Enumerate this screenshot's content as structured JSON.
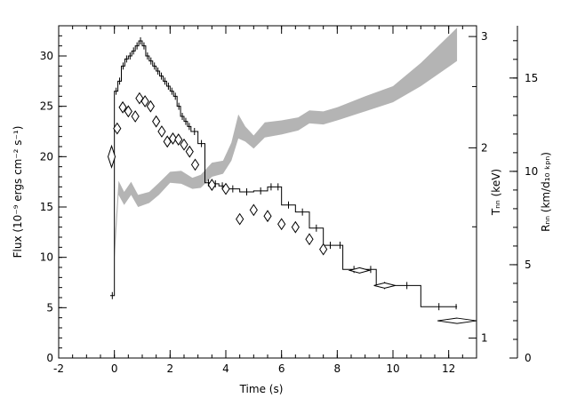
{
  "chart_data": {
    "type": "line",
    "xlabel": "Time (s)",
    "ylabel_left": "Flux (10⁻⁹ ergs cm⁻² s⁻¹)",
    "ylabel_mid": "Tₙₙ (keV)",
    "ylabel_right": "Rₙₙ (km/d₁₀ ₖₚₙ)",
    "xlim": [
      -2,
      13
    ],
    "ylim_left": [
      0,
      33
    ],
    "xticks": [
      "-2",
      "0",
      "2",
      "4",
      "6",
      "8",
      "10",
      "12"
    ],
    "yticks_left": [
      "0",
      "5",
      "10",
      "15",
      "20",
      "25",
      "30"
    ],
    "yticks_mid": [
      "1",
      "2",
      "3"
    ],
    "yticks_right": [
      "0",
      "5",
      "10",
      "15"
    ],
    "flux_steps": [
      [
        -0.15,
        6.2
      ],
      [
        0.0,
        26.5
      ],
      [
        0.125,
        27.5
      ],
      [
        0.25,
        29.0
      ],
      [
        0.375,
        29.7
      ],
      [
        0.5,
        30.0
      ],
      [
        0.625,
        30.5
      ],
      [
        0.75,
        31.0
      ],
      [
        0.875,
        31.5
      ],
      [
        1.0,
        31.0
      ],
      [
        1.125,
        30.0
      ],
      [
        1.25,
        29.5
      ],
      [
        1.375,
        29.0
      ],
      [
        1.5,
        28.5
      ],
      [
        1.625,
        28.0
      ],
      [
        1.75,
        27.5
      ],
      [
        1.875,
        27.0
      ],
      [
        2.0,
        26.5
      ],
      [
        2.125,
        26.0
      ],
      [
        2.25,
        25.0
      ],
      [
        2.375,
        24.0
      ],
      [
        2.5,
        23.5
      ],
      [
        2.625,
        23.0
      ],
      [
        2.75,
        22.5
      ],
      [
        3.0,
        21.3
      ],
      [
        3.25,
        17.4
      ],
      [
        3.5,
        17.3
      ],
      [
        3.75,
        17.1
      ],
      [
        4.0,
        16.8
      ],
      [
        4.5,
        16.5
      ],
      [
        5.0,
        16.6
      ],
      [
        5.5,
        17.0
      ],
      [
        5.75,
        17.0
      ],
      [
        6.0,
        15.2
      ],
      [
        6.5,
        14.5
      ],
      [
        7.0,
        12.9
      ],
      [
        7.5,
        11.2
      ],
      [
        8.0,
        11.2
      ],
      [
        8.2,
        8.8
      ],
      [
        9.0,
        8.8
      ],
      [
        9.4,
        7.2
      ],
      [
        10.0,
        7.2
      ],
      [
        11.0,
        5.1
      ],
      [
        12.3,
        5.1
      ]
    ],
    "diamonds": [
      [
        -0.1,
        20.0
      ],
      [
        0.1,
        22.8
      ],
      [
        0.3,
        24.9
      ],
      [
        0.5,
        24.5
      ],
      [
        0.75,
        24.0
      ],
      [
        0.9,
        25.8
      ],
      [
        1.1,
        25.5
      ],
      [
        1.3,
        25.0
      ],
      [
        1.5,
        23.5
      ],
      [
        1.7,
        22.5
      ],
      [
        1.9,
        21.5
      ],
      [
        2.1,
        21.8
      ],
      [
        2.3,
        21.7
      ],
      [
        2.5,
        21.2
      ],
      [
        2.7,
        20.5
      ],
      [
        2.9,
        19.2
      ],
      [
        3.5,
        17.2
      ],
      [
        4.0,
        16.8
      ],
      [
        4.5,
        13.8
      ],
      [
        5.0,
        14.7
      ],
      [
        5.5,
        14.1
      ],
      [
        6.0,
        13.3
      ],
      [
        6.5,
        13.0
      ],
      [
        7.0,
        11.8
      ],
      [
        7.5,
        10.8
      ],
      [
        8.8,
        8.7
      ],
      [
        9.7,
        7.2
      ],
      [
        12.3,
        3.7
      ]
    ],
    "band": [
      [
        0.0,
        9.5,
        11.5
      ],
      [
        0.15,
        16.2,
        17.6
      ],
      [
        0.35,
        15.2,
        16.5
      ],
      [
        0.6,
        16.2,
        17.5
      ],
      [
        0.85,
        15.0,
        16.2
      ],
      [
        1.25,
        15.4,
        16.5
      ],
      [
        1.6,
        16.2,
        17.4
      ],
      [
        2.0,
        17.4,
        18.5
      ],
      [
        2.4,
        17.3,
        18.6
      ],
      [
        2.8,
        16.8,
        17.9
      ],
      [
        3.1,
        16.9,
        18.2
      ],
      [
        3.5,
        18.0,
        19.4
      ],
      [
        3.9,
        18.3,
        19.6
      ],
      [
        4.2,
        19.6,
        21.4
      ],
      [
        4.45,
        21.8,
        24.2
      ],
      [
        4.7,
        21.5,
        23.0
      ],
      [
        5.0,
        20.8,
        22.1
      ],
      [
        5.4,
        21.9,
        23.4
      ],
      [
        6.0,
        22.2,
        23.6
      ],
      [
        6.6,
        22.6,
        23.9
      ],
      [
        7.0,
        23.3,
        24.6
      ],
      [
        7.5,
        23.2,
        24.5
      ],
      [
        8.0,
        23.6,
        24.9
      ],
      [
        9.0,
        24.5,
        26.0
      ],
      [
        10.0,
        25.4,
        27.0
      ],
      [
        11.0,
        27.0,
        29.3
      ],
      [
        12.3,
        29.5,
        32.8
      ]
    ]
  }
}
